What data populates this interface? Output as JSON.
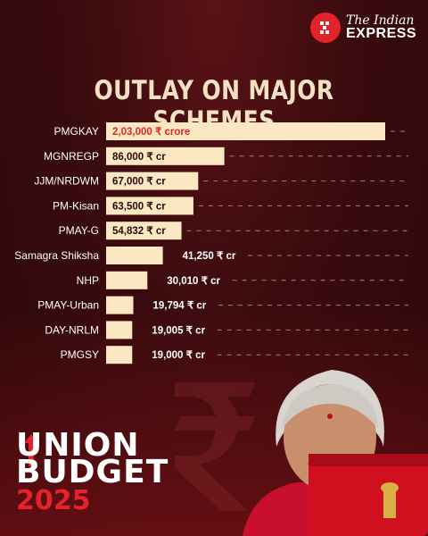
{
  "publisher": {
    "line1": "The Indian",
    "line2": "EXPRESS"
  },
  "branding": {
    "line1": "UNION",
    "line2": "BUDGET",
    "year": "2025"
  },
  "colors": {
    "bar": "#fbe8c3",
    "accent": "#e3232b",
    "title": "#f3e2c2"
  },
  "chart_data": {
    "type": "bar",
    "orientation": "horizontal",
    "title": "OUTLAY ON MAJOR SCHEMES",
    "categories": [
      "PMGKAY",
      "MGNREGP",
      "JJM/NRDWM",
      "PM-Kisan",
      "PMAY-G",
      "Samagra Shiksha",
      "NHP",
      "PMAY-Urban",
      "DAY-NRLM",
      "PMGSY"
    ],
    "values": [
      203000,
      86000,
      67000,
      63500,
      54832,
      41250,
      30010,
      19794,
      19005,
      19000
    ],
    "labels": [
      "2,03,000 ₹ crore",
      "86,000 ₹ cr",
      "67,000 ₹ cr",
      "63,500 ₹ cr",
      "54,832 ₹ cr",
      "41,250 ₹ cr",
      "30,010 ₹ cr",
      "19,794 ₹ cr",
      "19,005 ₹ cr",
      "19,000 ₹ cr"
    ],
    "unit": "₹ crore",
    "xlim": [
      0,
      203000
    ],
    "grid": false
  }
}
